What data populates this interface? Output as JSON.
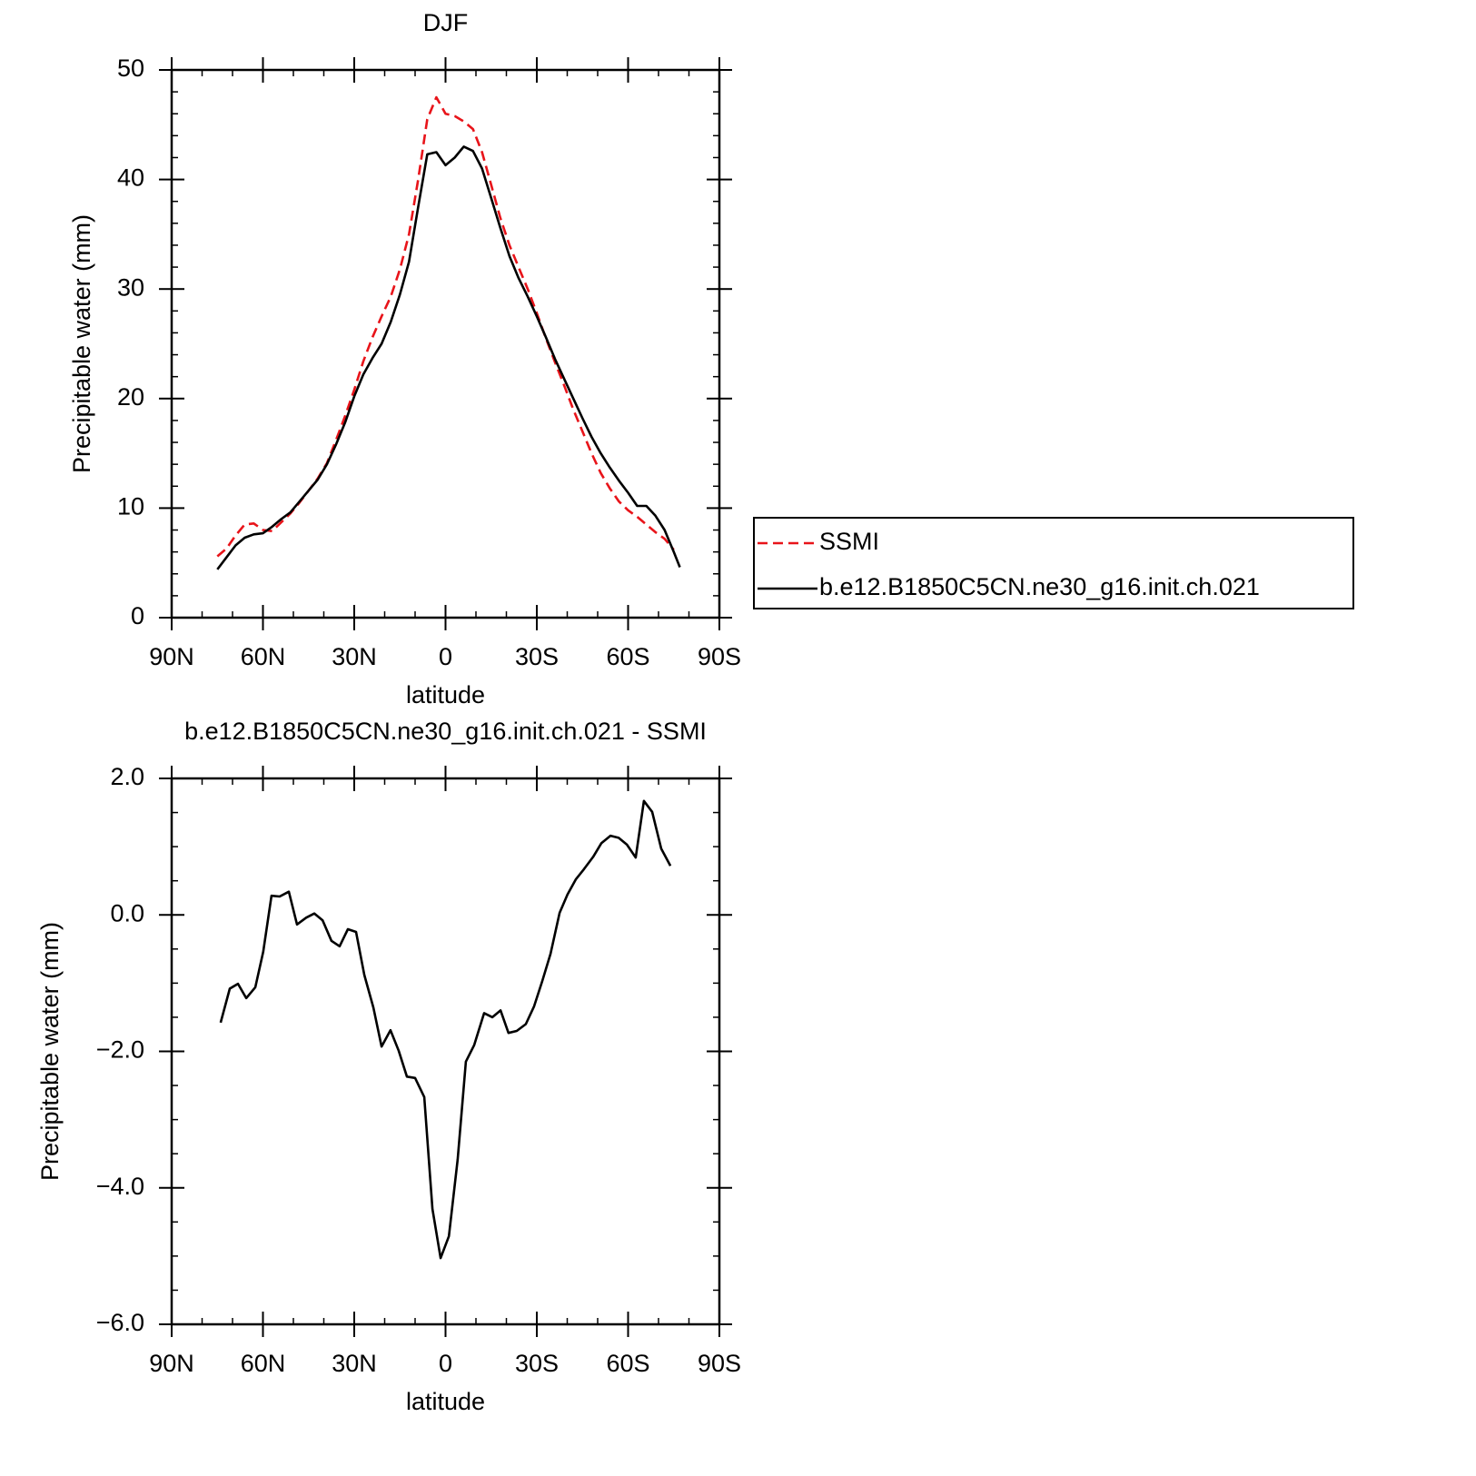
{
  "chart_data": [
    {
      "type": "line",
      "title": "DJF",
      "xlabel": "latitude",
      "ylabel": "Precipitable water (mm)",
      "x": [
        75,
        72,
        69,
        66,
        63,
        60,
        57,
        54,
        51,
        48,
        45,
        42,
        39,
        36,
        33,
        30,
        27,
        24,
        21,
        18,
        15,
        12,
        9,
        6,
        3,
        0,
        -3,
        -6,
        -9,
        -12,
        -15,
        -18,
        -21,
        -24,
        -27,
        -30,
        -33,
        -36,
        -39,
        -42,
        -45,
        -48,
        -51,
        -54,
        -57,
        -60,
        -63,
        -66,
        -69,
        -72,
        -75,
        -77
      ],
      "series": [
        {
          "name": "SSMI",
          "color": "#e8141a",
          "line_style": "dashed",
          "values": [
            5.6,
            6.3,
            7.5,
            8.5,
            8.6,
            8.0,
            7.9,
            8.7,
            9.5,
            10.5,
            11.6,
            12.7,
            14.1,
            16.2,
            18.4,
            20.8,
            23.4,
            25.6,
            27.5,
            29.3,
            31.8,
            35.0,
            40.0,
            45.5,
            47.5,
            46.0,
            45.8,
            45.3,
            44.6,
            42.5,
            39.5,
            36.5,
            34.0,
            32.0,
            30.0,
            27.8,
            25.5,
            23.3,
            21.2,
            19.0,
            17.0,
            15.0,
            13.2,
            11.8,
            10.6,
            9.8,
            9.2,
            8.5,
            7.8,
            7.2,
            6.2,
            null
          ]
        },
        {
          "name": "b.e12.B1850C5CN.ne30_g16.init.ch.021",
          "color": "#000000",
          "line_style": "solid",
          "values": [
            4.4,
            5.5,
            6.6,
            7.3,
            7.6,
            7.7,
            8.3,
            9.0,
            9.6,
            10.6,
            11.6,
            12.6,
            14.0,
            15.8,
            17.8,
            20.2,
            22.2,
            23.7,
            25.0,
            27.0,
            29.5,
            32.5,
            37.5,
            42.3,
            42.5,
            41.3,
            42.0,
            43.0,
            42.6,
            41.0,
            38.3,
            35.6,
            33.0,
            31.0,
            29.3,
            27.5,
            25.6,
            23.6,
            21.8,
            20.0,
            18.2,
            16.5,
            15.0,
            13.7,
            12.5,
            11.4,
            10.2,
            10.2,
            9.3,
            8.0,
            6.0,
            4.6
          ]
        }
      ],
      "xlim": [
        90,
        -90
      ],
      "xticks": [
        {
          "value": 90,
          "label": "90N"
        },
        {
          "value": 60,
          "label": "60N"
        },
        {
          "value": 30,
          "label": "30N"
        },
        0,
        {
          "value": -30,
          "label": "30S"
        },
        {
          "value": -60,
          "label": "60S"
        },
        {
          "value": -90,
          "label": "90S"
        }
      ],
      "ylim": [
        0,
        50
      ],
      "yticks": [
        0,
        10,
        20,
        30,
        40,
        50
      ],
      "legend": "right"
    },
    {
      "type": "line",
      "title": "b.e12.B1850C5CN.ne30_g16.init.ch.021 - SSMI",
      "xlabel": "latitude",
      "ylabel": "Precipitable water (mm)",
      "x": [
        73.9,
        70.9,
        68.2,
        65.5,
        62.5,
        59.9,
        57.2,
        54.5,
        51.5,
        48.8,
        45.8,
        43.1,
        40.4,
        37.5,
        34.8,
        32.1,
        29.4,
        26.7,
        23.7,
        21.0,
        18.1,
        15.4,
        12.7,
        10.0,
        7.0,
        4.3,
        1.6,
        -1.1,
        -4.0,
        -6.7,
        -9.4,
        -12.7,
        -15.4,
        -18.1,
        -20.7,
        -23.4,
        -26.4,
        -29.1,
        -31.8,
        -34.5,
        -37.5,
        -40.1,
        -42.8,
        -45.5,
        -48.5,
        -51.2,
        -54.2,
        -56.9,
        -59.6,
        -62.5,
        -65.2,
        -67.9,
        -70.9,
        -73.9
      ],
      "values": [
        -1.58,
        -1.08,
        -1.01,
        -1.22,
        -1.06,
        -0.54,
        0.28,
        0.27,
        0.34,
        -0.14,
        -0.04,
        0.02,
        -0.08,
        -0.38,
        -0.46,
        -0.21,
        -0.25,
        -0.88,
        -1.36,
        -1.93,
        -1.69,
        -1.99,
        -2.37,
        -2.39,
        -2.67,
        -4.31,
        -5.03,
        -4.71,
        -3.58,
        -2.15,
        -1.91,
        -1.44,
        -1.5,
        -1.4,
        -1.73,
        -1.7,
        -1.6,
        -1.34,
        -0.97,
        -0.57,
        0.03,
        0.3,
        0.52,
        0.67,
        0.85,
        1.05,
        1.16,
        1.13,
        1.03,
        0.84,
        1.67,
        1.51,
        0.97,
        0.72
      ],
      "color": "#000000",
      "xlim": [
        90,
        -90
      ],
      "xticks": [
        {
          "value": 90,
          "label": "90N"
        },
        {
          "value": 60,
          "label": "60N"
        },
        {
          "value": 30,
          "label": "30N"
        },
        0,
        {
          "value": -30,
          "label": "30S"
        },
        {
          "value": -60,
          "label": "60S"
        },
        {
          "value": -90,
          "label": "90S"
        }
      ],
      "ylim": [
        -6,
        2
      ],
      "yticks": [
        {
          "value": -6,
          "label": "−6.0"
        },
        {
          "value": -4,
          "label": "−4.0"
        },
        {
          "value": -2,
          "label": "−2.0"
        },
        {
          "value": 0,
          "label": "0.0"
        },
        {
          "value": 2,
          "label": "2.0"
        }
      ]
    }
  ]
}
